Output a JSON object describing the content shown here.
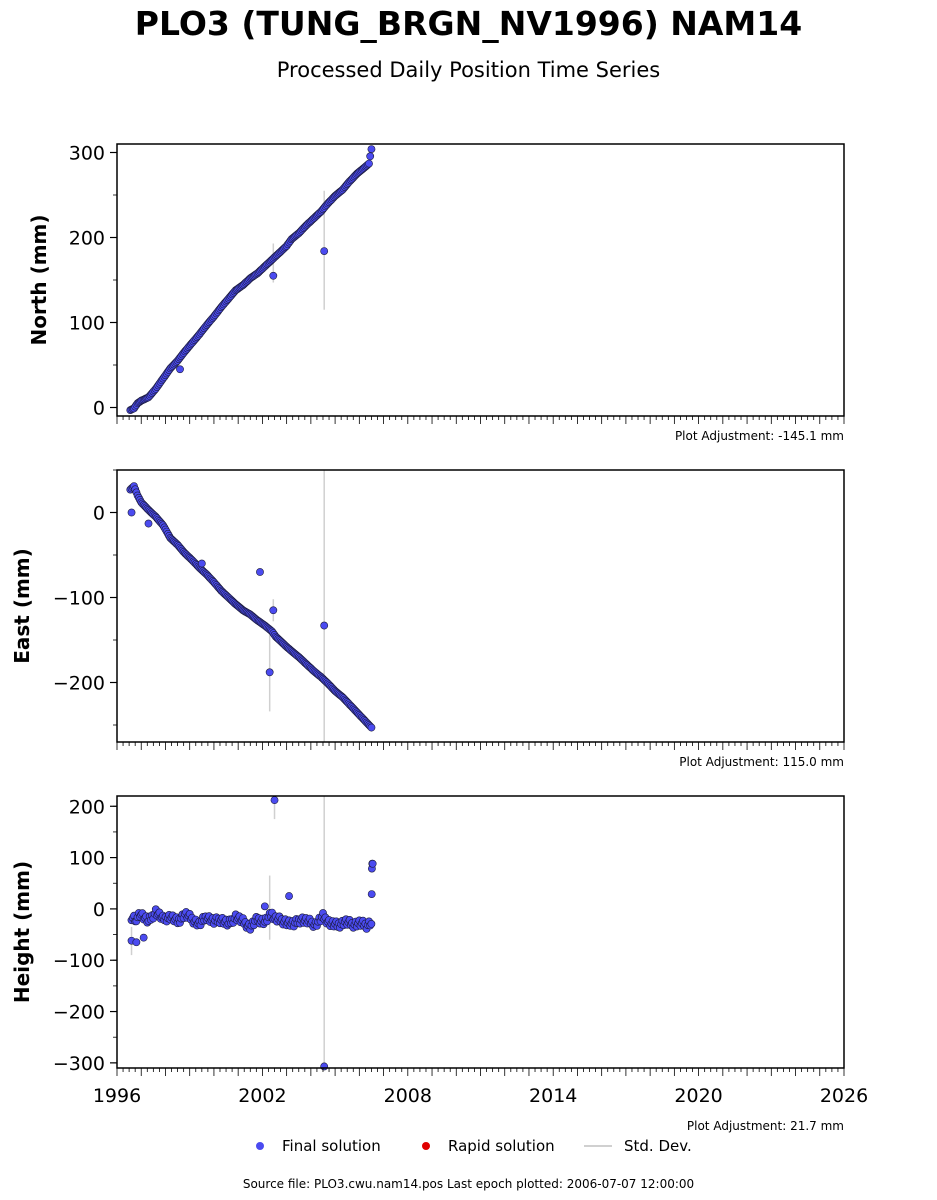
{
  "title": "PLO3 (TUNG_BRGN_NV1996) NAM14",
  "subtitle": "Processed Daily Position Time Series",
  "source_text": "Source file: PLO3.cwu.nam14.pos  Last epoch plotted: 2006-07-07 12:00:00",
  "legend": {
    "final": "Final solution",
    "rapid": "Rapid solution",
    "std": "Std. Dev."
  },
  "colors": {
    "final": "#4b4bf0",
    "final_edge": "#1a1a3a",
    "rapid": "#e00000",
    "stddev": "#d0d0d0"
  },
  "chart_data": [
    {
      "type": "scatter",
      "ylabel": "North (mm)",
      "adjustment": "Plot Adjustment: -145.1 mm",
      "xlim": [
        1996,
        2026
      ],
      "ylim": [
        -10,
        310
      ],
      "yticks": [
        0,
        100,
        200,
        300
      ],
      "series": [
        {
          "points": [
            [
              1996.55,
              -3
            ],
            [
              1996.7,
              -1
            ],
            [
              1996.85,
              5
            ],
            [
              1997.0,
              8
            ],
            [
              1997.3,
              12
            ],
            [
              1997.6,
              22
            ],
            [
              1997.9,
              34
            ],
            [
              1998.2,
              46
            ],
            [
              1998.5,
              55
            ],
            [
              1998.8,
              66
            ],
            [
              1999.1,
              76
            ],
            [
              1999.4,
              86
            ],
            [
              1999.7,
              97
            ],
            [
              2000.0,
              107
            ],
            [
              2000.3,
              118
            ],
            [
              2000.6,
              128
            ],
            [
              2000.9,
              138
            ],
            [
              2001.2,
              144
            ],
            [
              2001.5,
              152
            ],
            [
              2001.8,
              158
            ],
            [
              2002.1,
              166
            ],
            [
              2002.4,
              174
            ],
            [
              2002.55,
              178
            ],
            [
              2003.0,
              190
            ],
            [
              2003.2,
              198
            ],
            [
              2003.5,
              205
            ],
            [
              2003.8,
              214
            ],
            [
              2004.1,
              222
            ],
            [
              2004.4,
              230
            ],
            [
              2004.7,
              240
            ],
            [
              2005.0,
              249
            ],
            [
              2005.3,
              256
            ],
            [
              2005.6,
              266
            ],
            [
              2005.9,
              275
            ],
            [
              2006.2,
              282
            ],
            [
              2006.4,
              287
            ],
            [
              2006.5,
              304
            ]
          ],
          "outliers": [
            [
              1998.6,
              45
            ],
            [
              2002.45,
              155
            ],
            [
              2004.55,
              184
            ]
          ]
        }
      ],
      "stddev_bars": [
        [
          2002.45,
          147,
          193
        ],
        [
          2004.55,
          115,
          255
        ]
      ]
    },
    {
      "type": "scatter",
      "ylabel": "East (mm)",
      "adjustment": "Plot Adjustment: 115.0 mm",
      "xlim": [
        1996,
        2026
      ],
      "ylim": [
        -270,
        50
      ],
      "yticks": [
        -200,
        -100,
        0
      ],
      "series": [
        {
          "points": [
            [
              1996.55,
              27
            ],
            [
              1996.7,
              31
            ],
            [
              1996.85,
              20
            ],
            [
              1997.0,
              12
            ],
            [
              1997.3,
              3
            ],
            [
              1997.6,
              -5
            ],
            [
              1997.9,
              -15
            ],
            [
              1998.2,
              -30
            ],
            [
              1998.5,
              -38
            ],
            [
              1998.8,
              -48
            ],
            [
              1999.1,
              -56
            ],
            [
              1999.4,
              -65
            ],
            [
              1999.7,
              -73
            ],
            [
              2000.0,
              -82
            ],
            [
              2000.3,
              -92
            ],
            [
              2000.6,
              -100
            ],
            [
              2000.9,
              -108
            ],
            [
              2001.2,
              -115
            ],
            [
              2001.5,
              -120
            ],
            [
              2001.8,
              -127
            ],
            [
              2002.1,
              -133
            ],
            [
              2002.4,
              -140
            ],
            [
              2002.55,
              -146
            ],
            [
              2003.0,
              -158
            ],
            [
              2003.2,
              -163
            ],
            [
              2003.5,
              -170
            ],
            [
              2003.8,
              -178
            ],
            [
              2004.1,
              -186
            ],
            [
              2004.4,
              -193
            ],
            [
              2004.7,
              -201
            ],
            [
              2005.0,
              -210
            ],
            [
              2005.3,
              -217
            ],
            [
              2005.6,
              -226
            ],
            [
              2005.9,
              -235
            ],
            [
              2006.2,
              -244
            ],
            [
              2006.5,
              -253
            ]
          ],
          "outliers": [
            [
              1996.6,
              0
            ],
            [
              1997.3,
              -13
            ],
            [
              1999.5,
              -60
            ],
            [
              2001.9,
              -70
            ],
            [
              2002.3,
              -188
            ],
            [
              2002.45,
              -115
            ],
            [
              2004.55,
              -133
            ]
          ]
        }
      ],
      "stddev_bars": [
        [
          2002.3,
          -234,
          -142
        ],
        [
          2002.45,
          -128,
          -102
        ],
        [
          2004.55,
          -270,
          50
        ]
      ]
    },
    {
      "type": "scatter",
      "ylabel": "Height (mm)",
      "adjustment": "Plot Adjustment: 21.7 mm",
      "xlim": [
        1996,
        2026
      ],
      "ylim": [
        -310,
        220
      ],
      "yticks": [
        -300,
        -200,
        -100,
        0,
        100,
        200
      ],
      "xticks": [
        1996,
        2002,
        2008,
        2014,
        2020,
        2026
      ],
      "series": [
        {
          "points": [
            [
              1996.6,
              -15
            ],
            [
              1996.8,
              -20
            ],
            [
              1997.0,
              -10
            ],
            [
              1997.3,
              -25
            ],
            [
              1997.6,
              -5
            ],
            [
              1997.9,
              -20
            ],
            [
              1998.2,
              -15
            ],
            [
              1998.5,
              -25
            ],
            [
              1998.8,
              -10
            ],
            [
              1999.1,
              -20
            ],
            [
              1999.4,
              -30
            ],
            [
              1999.7,
              -15
            ],
            [
              2000.0,
              -25
            ],
            [
              2000.3,
              -20
            ],
            [
              2000.6,
              -30
            ],
            [
              2000.9,
              -15
            ],
            [
              2001.2,
              -25
            ],
            [
              2001.5,
              -35
            ],
            [
              2001.8,
              -20
            ],
            [
              2002.1,
              -25
            ],
            [
              2002.4,
              -10
            ],
            [
              2002.55,
              -20
            ],
            [
              2003.0,
              -25
            ],
            [
              2003.3,
              -30
            ],
            [
              2003.6,
              -20
            ],
            [
              2003.9,
              -25
            ],
            [
              2004.2,
              -30
            ],
            [
              2004.5,
              -15
            ],
            [
              2004.8,
              -28
            ],
            [
              2005.1,
              -32
            ],
            [
              2005.4,
              -25
            ],
            [
              2005.7,
              -30
            ],
            [
              2006.0,
              -28
            ],
            [
              2006.3,
              -32
            ],
            [
              2006.5,
              -25
            ],
            [
              2006.52,
              80
            ],
            [
              2006.55,
              88
            ]
          ],
          "outliers": [
            [
              1996.6,
              -62
            ],
            [
              1996.8,
              -65
            ],
            [
              1997.1,
              -56
            ],
            [
              2002.1,
              5
            ],
            [
              2002.5,
              212
            ],
            [
              2003.1,
              25
            ],
            [
              2004.55,
              -307
            ]
          ]
        }
      ],
      "stddev_bars": [
        [
          1996.6,
          -90,
          -35
        ],
        [
          2002.3,
          -60,
          65
        ],
        [
          2002.5,
          175,
          220
        ],
        [
          2004.55,
          -310,
          220
        ]
      ]
    }
  ]
}
